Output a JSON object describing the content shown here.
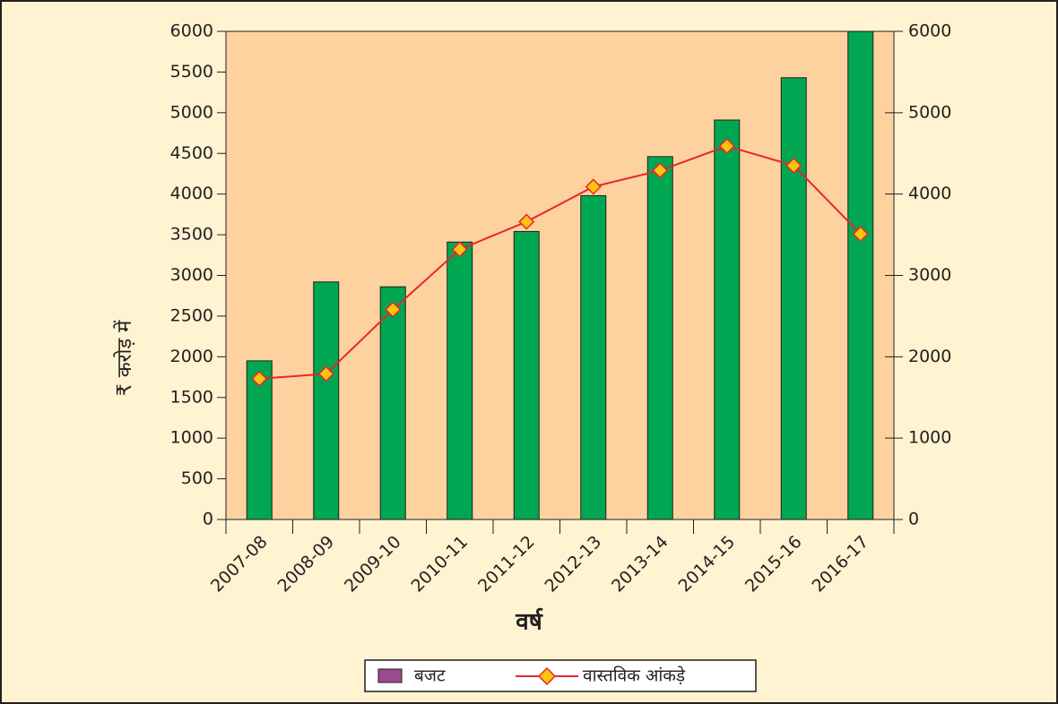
{
  "chart_data": {
    "type": "bar",
    "x_label": "वर्ष",
    "y_label": "₹ करोड़ में",
    "categories": [
      "2007-08",
      "2008-09",
      "2009-10",
      "2010-11",
      "2011-12",
      "2012-13",
      "2013-14",
      "2014-15",
      "2015-16",
      "2016-17"
    ],
    "series": [
      {
        "name": "बजट",
        "type": "bar",
        "color": "#00a651",
        "legend_color": "#9b4a8c",
        "values": [
          1950,
          2920,
          2860,
          3410,
          3540,
          3980,
          4460,
          4910,
          5430,
          6000
        ]
      },
      {
        "name": "वास्तविक आंकड़े",
        "type": "line",
        "axis": "y2",
        "color": "#e8262a",
        "marker_color": "#fcc40f",
        "values": [
          1730,
          1790,
          2580,
          3320,
          3660,
          4090,
          4290,
          4590,
          4350,
          3510
        ]
      }
    ],
    "ylim": [
      0,
      6000
    ],
    "yticks": [
      0,
      500,
      1000,
      1500,
      2000,
      2500,
      3000,
      3500,
      4000,
      4500,
      5000,
      5500,
      6000
    ],
    "y2lim": [
      0,
      6000
    ],
    "y2ticks": [
      0,
      1000,
      2000,
      3000,
      4000,
      5000,
      6000
    ],
    "grid": false
  }
}
